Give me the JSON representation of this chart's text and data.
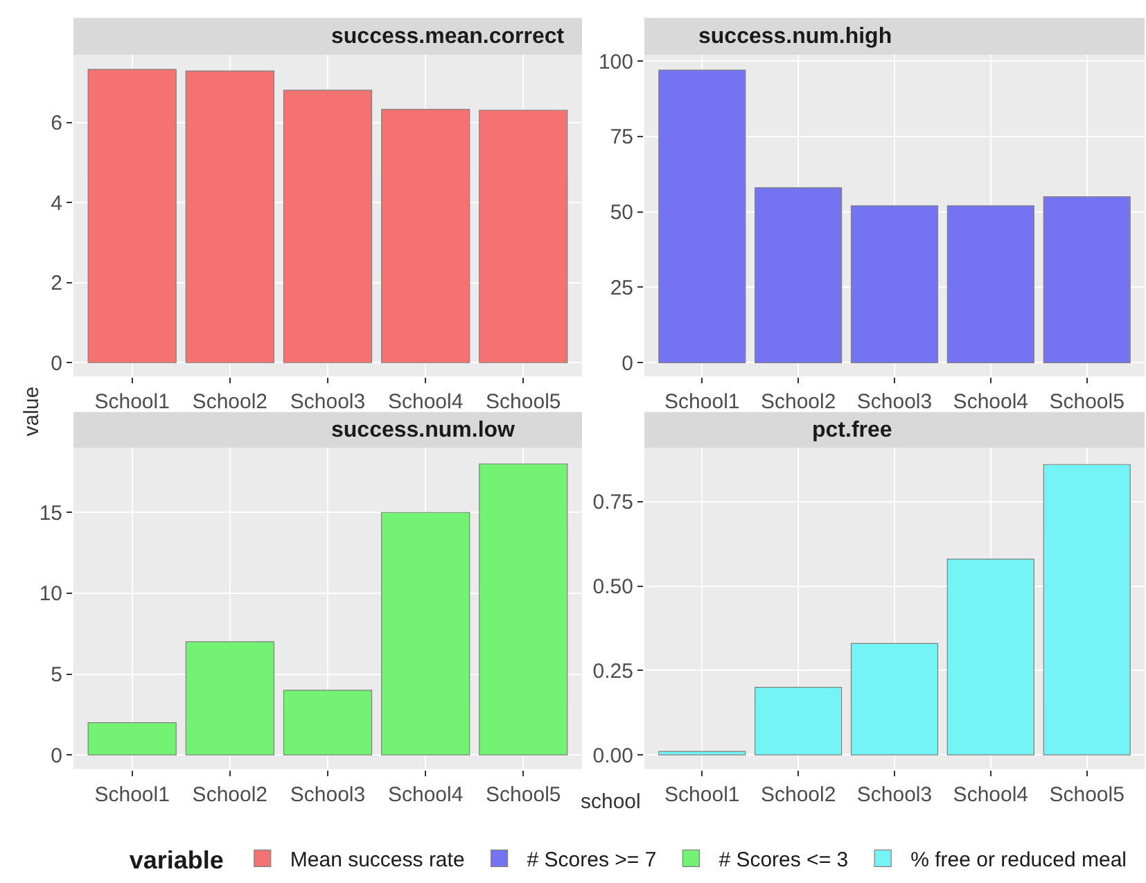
{
  "chart_data": [
    {
      "type": "bar",
      "title": "success.mean.correct",
      "ylabel": "value",
      "categories": [
        "School1",
        "School2",
        "School3",
        "School4",
        "School5"
      ],
      "series": [
        {
          "name": "Mean success rate",
          "color": "#f47272",
          "values": [
            7.33,
            7.29,
            6.81,
            6.33,
            6.31
          ]
        }
      ],
      "ylim": [
        -0.34,
        7.69
      ],
      "yticks": [
        0,
        2,
        4,
        6
      ],
      "grid": true,
      "legend": "bottom"
    },
    {
      "type": "bar",
      "title": "success.num.high",
      "categories": [
        "School1",
        "School2",
        "School3",
        "School4",
        "School5"
      ],
      "series": [
        {
          "name": "# Scores >= 7",
          "color": "#7474f2",
          "values": [
            97,
            58,
            52,
            52,
            55
          ]
        }
      ],
      "ylim": [
        -4.5,
        102
      ],
      "yticks": [
        0,
        25,
        50,
        75,
        100
      ],
      "grid": true,
      "legend": "bottom"
    },
    {
      "type": "bar",
      "title": "success.num.low",
      "categories": [
        "School1",
        "School2",
        "School3",
        "School4",
        "School5"
      ],
      "series": [
        {
          "name": "# Scores <= 3",
          "color": "#74f274",
          "values": [
            2,
            7,
            4,
            15,
            18
          ]
        }
      ],
      "ylim": [
        -0.87,
        19.0
      ],
      "yticks": [
        0,
        5,
        10,
        15
      ],
      "grid": true,
      "legend": "bottom"
    },
    {
      "type": "bar",
      "title": "pct.free",
      "xlabel": "school",
      "legend_title": "variable",
      "categories": [
        "School1",
        "School2",
        "School3",
        "School4",
        "School5"
      ],
      "series": [
        {
          "name": "% free or reduced meal",
          "color": "#74f4f4",
          "values": [
            0.01,
            0.2,
            0.33,
            0.58,
            0.86
          ]
        }
      ],
      "ylim": [
        -0.042,
        0.91
      ],
      "yticks": [
        {
          "value": 0,
          "label": "0.00"
        },
        {
          "value": 0.25,
          "label": "0.25"
        },
        {
          "value": 0.5,
          "label": "0.50"
        },
        {
          "value": 0.75,
          "label": "0.75"
        }
      ],
      "grid": true,
      "legend": "bottom"
    }
  ]
}
